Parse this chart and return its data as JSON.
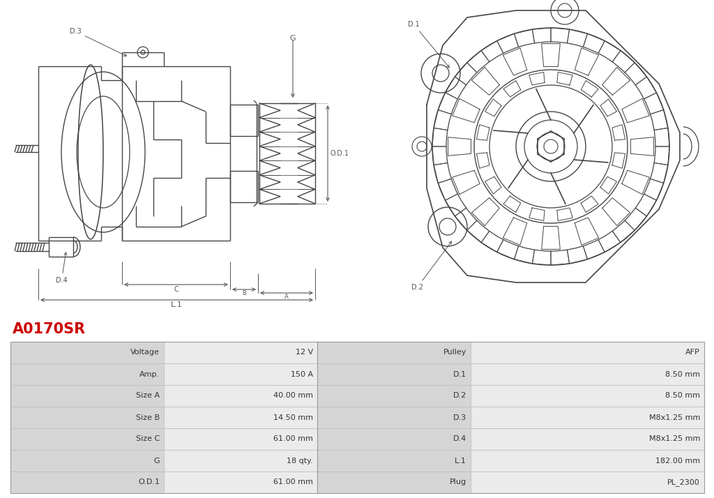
{
  "title": "A0170SR",
  "title_color": "#CC0000",
  "bg_color": "#FFFFFF",
  "table_rows": [
    [
      "Voltage",
      "12 V",
      "Pulley",
      "AFP"
    ],
    [
      "Amp.",
      "150 A",
      "D.1",
      "8.50 mm"
    ],
    [
      "Size A",
      "40.00 mm",
      "D.2",
      "8.50 mm"
    ],
    [
      "Size B",
      "14.50 mm",
      "D.3",
      "M8x1.25 mm"
    ],
    [
      "Size C",
      "61.00 mm",
      "D.4",
      "M8x1.25 mm"
    ],
    [
      "G",
      "18 qty.",
      "L.1",
      "182.00 mm"
    ],
    [
      "O.D.1",
      "61.00 mm",
      "Plug",
      "PL_2300"
    ]
  ],
  "line_color": "#444444",
  "dim_color": "#555555"
}
